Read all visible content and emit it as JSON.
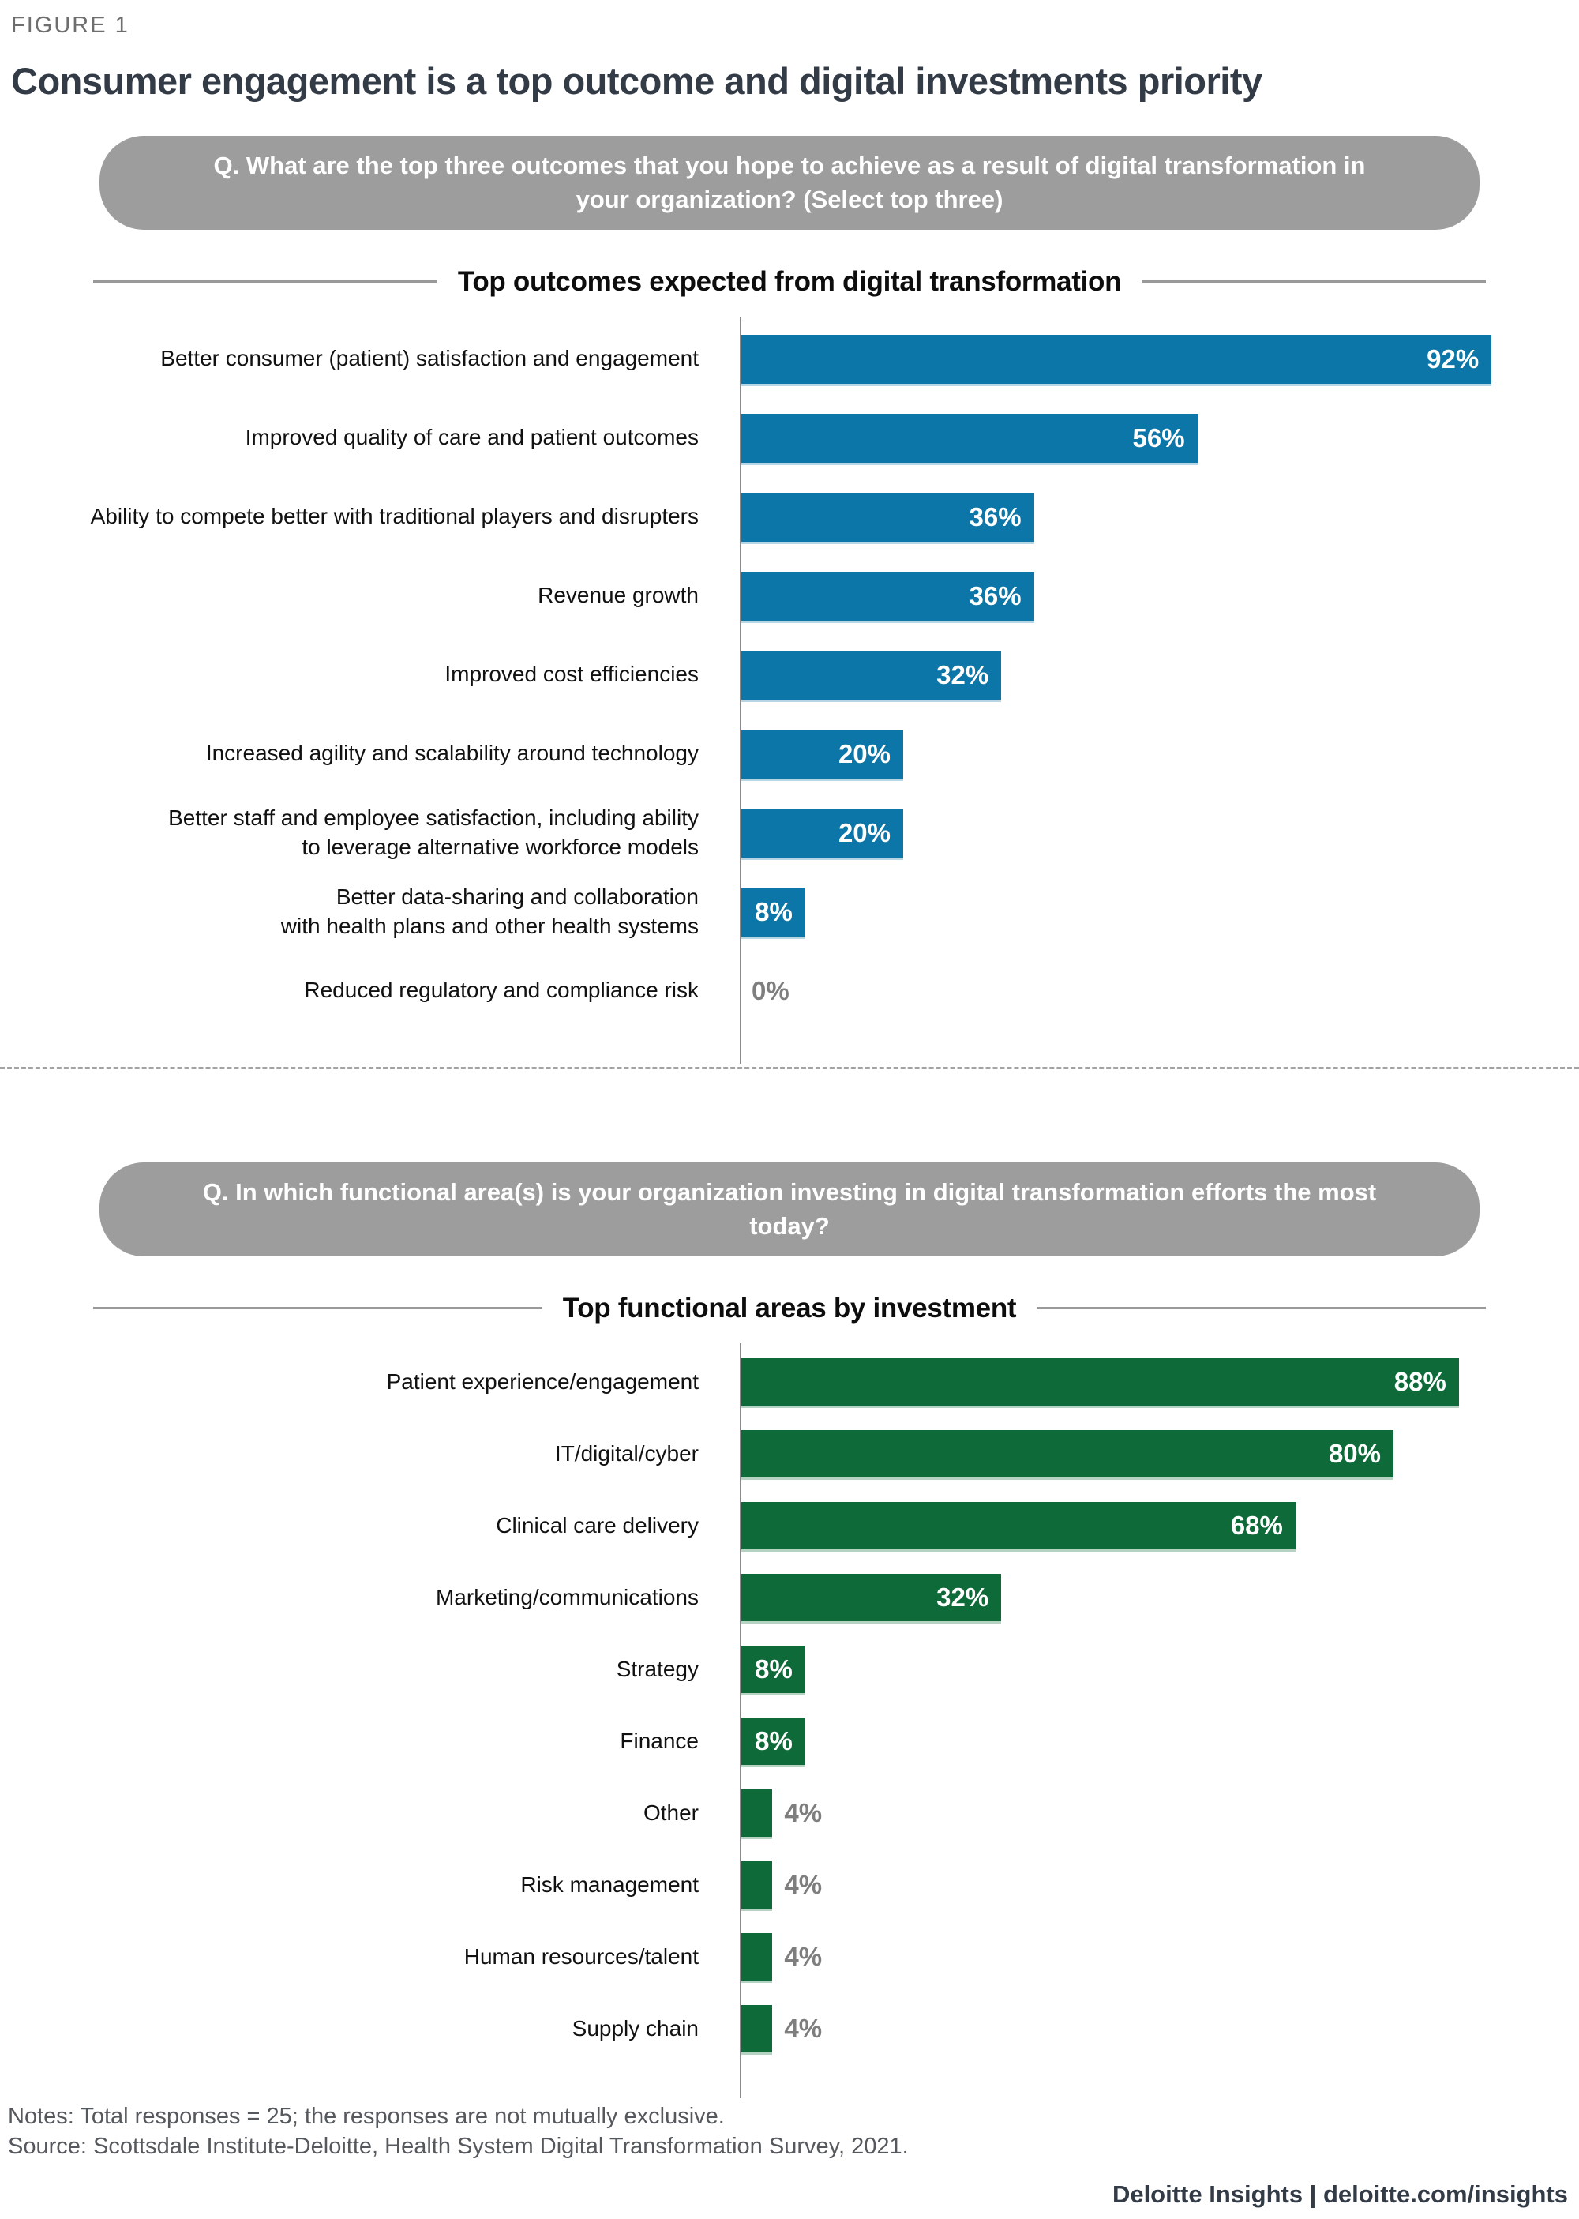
{
  "figure_label": "FIGURE 1",
  "title": "Consumer engagement is a top outcome and digital investments priority",
  "colors": {
    "blue_bar": "#0d76a8",
    "green_bar": "#0e6a38",
    "pill_gray": "#9d9d9d",
    "title_dark": "#333b46",
    "muted_value_gray": "#7e7e7e"
  },
  "chart_data": [
    {
      "type": "bar",
      "orientation": "horizontal",
      "question": "Q. What are the top three outcomes that you hope to achieve as a result of digital transformation in your organization? (Select top three)",
      "title": "Top outcomes expected from digital transformation",
      "categories": [
        "Better consumer (patient) satisfaction and engagement",
        "Improved quality of care and patient outcomes",
        "Ability to compete better with traditional players and disrupters",
        "Revenue growth",
        "Improved cost efficiencies",
        "Increased agility and scalability around technology",
        "Better staff and employee satisfaction, including ability\nto leverage alternative workforce models",
        "Better data-sharing and collaboration\nwith health plans and other health systems",
        "Reduced regulatory and compliance risk"
      ],
      "values": [
        92,
        56,
        36,
        36,
        32,
        20,
        20,
        8,
        0
      ],
      "unit": "%",
      "bar_color": "#0d76a8",
      "xlim": [
        0,
        100
      ],
      "grid": false,
      "legend": "none",
      "value_labels": "end-of-bar, white inside bar; gray outside when bar too short"
    },
    {
      "type": "bar",
      "orientation": "horizontal",
      "question": "Q. In which functional area(s) is your organization investing in digital transformation efforts the most today?",
      "title": "Top functional areas by investment",
      "categories": [
        "Patient experience/engagement",
        "IT/digital/cyber",
        "Clinical care delivery",
        "Marketing/communications",
        "Strategy",
        "Finance",
        "Other",
        "Risk management",
        "Human resources/talent",
        "Supply chain"
      ],
      "values": [
        88,
        80,
        68,
        32,
        8,
        8,
        4,
        4,
        4,
        4
      ],
      "unit": "%",
      "bar_color": "#0e6a38",
      "xlim": [
        0,
        100
      ],
      "grid": false,
      "legend": "none",
      "value_labels": "end-of-bar, white inside bar; gray outside when bar too short"
    }
  ],
  "notes": "Notes: Total responses = 25; the responses are not mutually exclusive.",
  "source": "Source: Scottsdale Institute-Deloitte, Health System Digital Transformation Survey, 2021.",
  "footer_brand": "Deloitte Insights | deloitte.com/insights"
}
